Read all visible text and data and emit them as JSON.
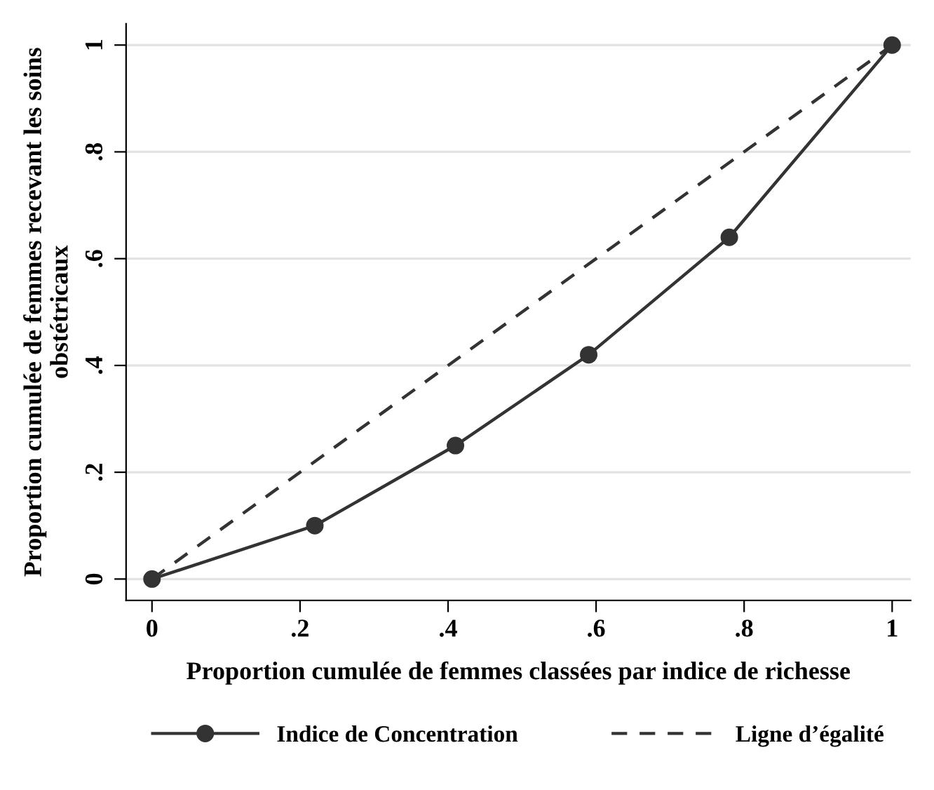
{
  "chart_data": {
    "type": "line",
    "xlabel": "Proportion cumulée de femmes classées par indice de richesse",
    "ylabel": "Proportion cumulée de femmes recevant les soins obstétricaux",
    "series": [
      {
        "name": "Indice de Concentration",
        "color": "#333333",
        "x": [
          0,
          0.22,
          0.41,
          0.59,
          0.78,
          1
        ],
        "values": [
          0,
          0.1,
          0.25,
          0.42,
          0.64,
          1
        ],
        "marker": "circle",
        "line_style": "solid"
      },
      {
        "name": "Ligne d’égalité",
        "color": "#333333",
        "x": [
          0,
          1
        ],
        "values": [
          0,
          1
        ],
        "marker": "none",
        "line_style": "dashed"
      }
    ],
    "xlim": [
      -0.035,
      1.025
    ],
    "ylim": [
      -0.04,
      1.04
    ],
    "xticks": [
      {
        "value": 0,
        "label": "0"
      },
      {
        "value": 0.2,
        "label": ".2"
      },
      {
        "value": 0.4,
        "label": ".4"
      },
      {
        "value": 0.6,
        "label": ".6"
      },
      {
        "value": 0.8,
        "label": ".8"
      },
      {
        "value": 1,
        "label": "1"
      }
    ],
    "yticks": [
      {
        "value": 0,
        "label": "0"
      },
      {
        "value": 0.2,
        "label": ".2"
      },
      {
        "value": 0.4,
        "label": ".4"
      },
      {
        "value": 0.6,
        "label": ".6"
      },
      {
        "value": 0.8,
        "label": ".8"
      },
      {
        "value": 1,
        "label": "1"
      }
    ],
    "grid": "y",
    "legend": "bottom"
  }
}
